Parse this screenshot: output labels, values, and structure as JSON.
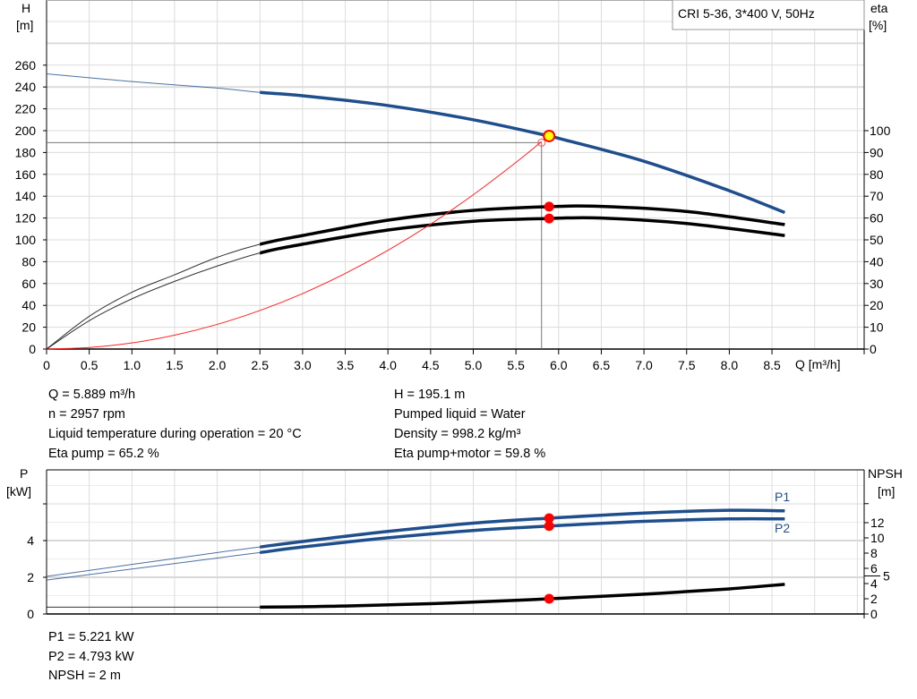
{
  "chart_data": [
    {
      "type": "line",
      "legend_box": "CRI 5-36, 3*400 V, 50Hz",
      "xlabel": "Q [m³/h]",
      "ylabel_left": [
        "H",
        "[m]"
      ],
      "ylabel_right": [
        "eta",
        "[%]"
      ],
      "x_ticks": [
        "0",
        "0.5",
        "1.0",
        "1.5",
        "2.0",
        "2.5",
        "3.0",
        "3.5",
        "4.0",
        "4.5",
        "5.0",
        "5.5",
        "6.0",
        "6.5",
        "7.0",
        "7.5",
        "8.0",
        "8.5"
      ],
      "y_left_ticks": [
        "0",
        "20",
        "40",
        "60",
        "80",
        "100",
        "120",
        "140",
        "160",
        "180",
        "200",
        "220",
        "240",
        "260"
      ],
      "y_right_ticks": [
        "0",
        "10",
        "20",
        "30",
        "40",
        "50",
        "60",
        "70",
        "80",
        "90",
        "100"
      ],
      "xlim": [
        0,
        9.6
      ],
      "ylim_left": [
        0,
        320
      ],
      "ylim_right": [
        0,
        131
      ],
      "grid": true,
      "series": [
        {
          "key": "H",
          "axis": "left",
          "color": "#1f4e8c",
          "thick_from": 2.5,
          "x": [
            0,
            1,
            2,
            2.5,
            3,
            4,
            5,
            5.889,
            6,
            7,
            8,
            8.65
          ],
          "y": [
            252,
            245,
            239,
            235,
            232,
            223,
            210,
            195.1,
            193,
            172,
            145,
            125
          ]
        },
        {
          "key": "eta_pump",
          "axis": "right",
          "color": "#000000",
          "thick_from": 2.5,
          "x": [
            0,
            0.5,
            1,
            1.5,
            2,
            2.5,
            3,
            4,
            5,
            5.889,
            6.5,
            7.5,
            8.65
          ],
          "y": [
            0,
            15,
            26,
            34,
            42,
            48,
            52,
            59,
            63.5,
            65.2,
            65.3,
            63,
            57
          ]
        },
        {
          "key": "eta_pump_motor",
          "axis": "right",
          "color": "#000000",
          "thick_from": 2.5,
          "x": [
            0,
            0.5,
            1,
            1.5,
            2,
            2.5,
            3,
            4,
            5,
            5.889,
            6.5,
            7.5,
            8.65
          ],
          "y": [
            0,
            13,
            23,
            31,
            38,
            44,
            48,
            54.5,
            58.5,
            59.8,
            60,
            57.5,
            52
          ]
        },
        {
          "key": "system_curve",
          "axis": "left",
          "color": "#ff2020",
          "x": [
            0,
            0.5,
            1,
            1.5,
            2,
            2.5,
            3,
            3.5,
            4,
            4.5,
            5,
            5.5,
            5.8
          ],
          "y": [
            0,
            1.4,
            5.6,
            12.7,
            22.6,
            35.3,
            50.8,
            69.2,
            90.4,
            114.4,
            141.3,
            170.9,
            190
          ]
        }
      ],
      "operating_point": {
        "Q": 5.889,
        "H": 195.1,
        "eta_pump": 65.2,
        "eta_pump_motor": 59.8
      },
      "requested_point": {
        "Q": 5.8,
        "H": 189
      }
    },
    {
      "type": "line",
      "ylabel_left": [
        "P",
        "[kW]"
      ],
      "ylabel_right": [
        "NPSH",
        "[m]"
      ],
      "y_left_ticks": [
        "0",
        "2",
        "4"
      ],
      "y_right_ticks": [
        "0",
        "2",
        "4",
        "5",
        "6",
        "8",
        "10",
        "12"
      ],
      "ylim_left": [
        0,
        7.8
      ],
      "ylim_right": [
        0,
        19.4
      ],
      "xlim": [
        0,
        9.6
      ],
      "grid": true,
      "series": [
        {
          "name": "P1",
          "axis": "left",
          "color": "#1f4e8c",
          "thick_from": 2.5,
          "x": [
            0,
            1,
            2,
            2.5,
            3,
            4,
            5,
            5.889,
            7,
            8,
            8.65
          ],
          "y": [
            2.05,
            2.7,
            3.35,
            3.65,
            3.95,
            4.5,
            4.95,
            5.221,
            5.5,
            5.65,
            5.62
          ]
        },
        {
          "name": "P2",
          "axis": "left",
          "color": "#1f4e8c",
          "thick_from": 2.5,
          "x": [
            0,
            1,
            2,
            2.5,
            3,
            4,
            5,
            5.889,
            7,
            8,
            8.65
          ],
          "y": [
            1.85,
            2.45,
            3.05,
            3.35,
            3.65,
            4.15,
            4.55,
            4.793,
            5.05,
            5.18,
            5.18
          ]
        },
        {
          "key": "NPSH",
          "axis": "right",
          "color": "#000000",
          "thick_from": 2.5,
          "x": [
            0,
            2.5,
            3.5,
            4.5,
            5.5,
            5.889,
            7,
            8,
            8.65
          ],
          "y": [
            0.9,
            0.9,
            1.05,
            1.35,
            1.8,
            2,
            2.6,
            3.3,
            3.9
          ]
        }
      ],
      "operating_point": {
        "Q": 5.889,
        "P1": 5.221,
        "P2": 4.793,
        "NPSH": 2
      }
    }
  ],
  "info_top": {
    "left": [
      "Q = 5.889 m³/h",
      "n = 2957 rpm",
      "Liquid temperature during operation = 20 °C",
      "Eta pump = 65.2 %"
    ],
    "right": [
      "H = 195.1 m",
      "Pumped liquid = Water",
      "Density = 998.2 kg/m³",
      "Eta pump+motor = 59.8 %"
    ]
  },
  "info_bottom": [
    "P1 = 5.221 kW",
    "P2 = 4.793 kW",
    "NPSH = 2 m"
  ]
}
